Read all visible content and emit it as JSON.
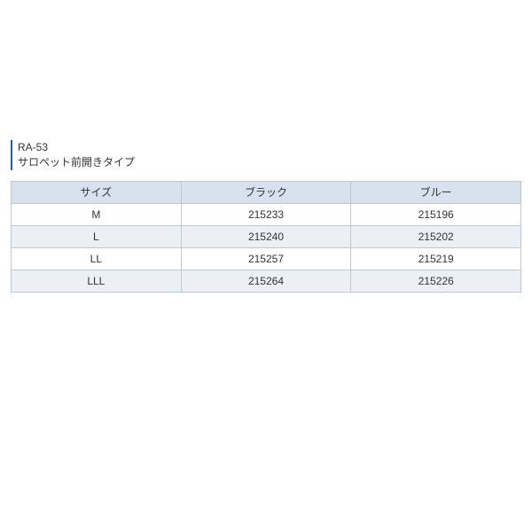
{
  "title": {
    "code": "RA-53",
    "name": "サロペット前開きタイプ"
  },
  "table": {
    "header_bg": "#d7e2ee",
    "even_row_bg": "#eaf0f6",
    "odd_row_bg": "#ffffff",
    "border_color": "#c0c7d0",
    "columns": [
      "サイズ",
      "ブラック",
      "ブルー"
    ],
    "rows": [
      [
        "M",
        "215233",
        "215196"
      ],
      [
        "L",
        "215240",
        "215202"
      ],
      [
        "LL",
        "215257",
        "215219"
      ],
      [
        "LLL",
        "215264",
        "215226"
      ]
    ]
  }
}
